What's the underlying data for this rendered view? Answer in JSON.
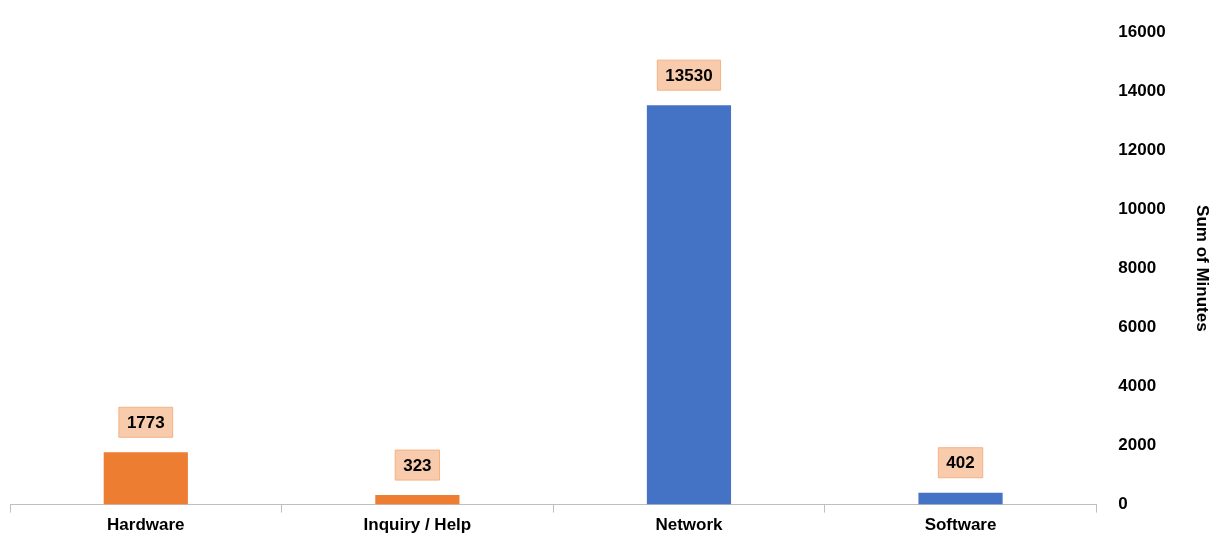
{
  "chart_data": {
    "type": "bar",
    "ylabel": "Sum of Minutes",
    "categories": [
      "Hardware",
      "Inquiry / Help",
      "Network",
      "Software"
    ],
    "values": [
      1773,
      323,
      13530,
      402
    ],
    "colors": [
      "#ed7d31",
      "#ed7d31",
      "#4472c4",
      "#4472c4"
    ],
    "ylim": [
      0,
      16000
    ],
    "yticks": [
      0,
      2000,
      4000,
      6000,
      8000,
      10000,
      12000,
      14000,
      16000
    ],
    "grid": false,
    "legend": false,
    "data_labels": true
  }
}
